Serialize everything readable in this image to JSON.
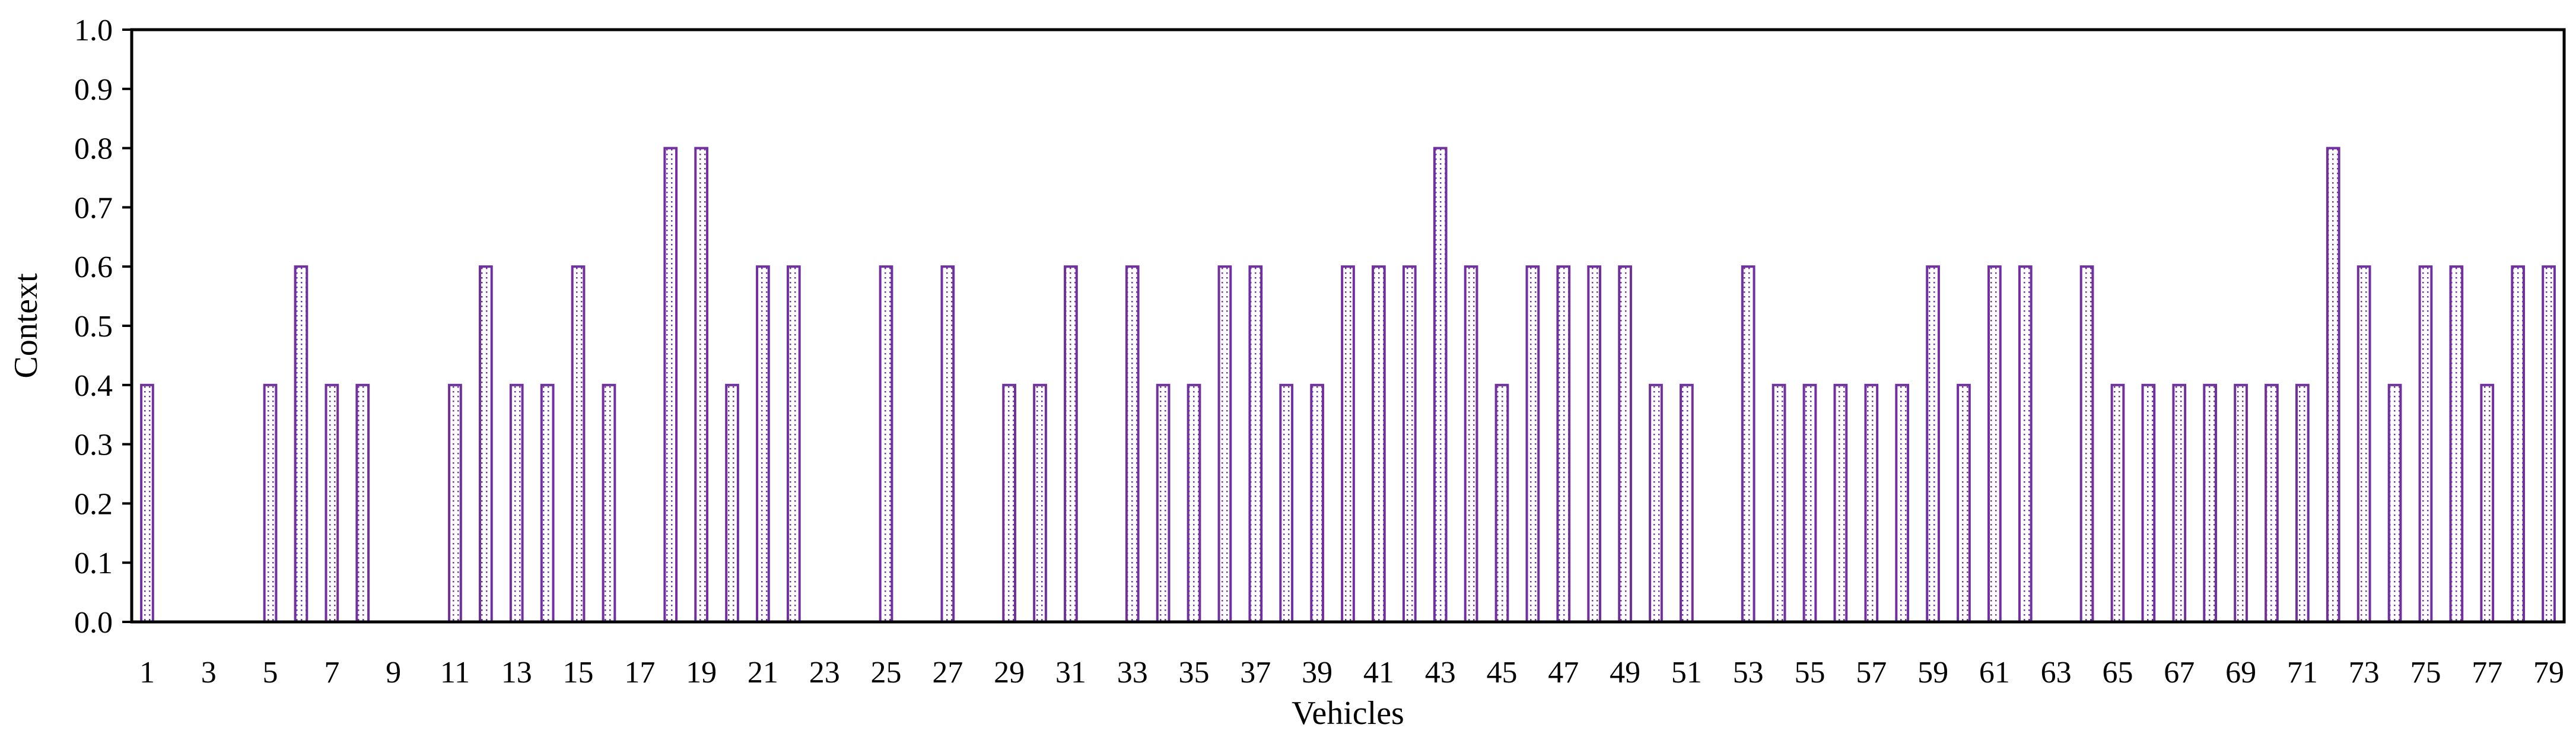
{
  "chart_data": {
    "type": "bar",
    "xlabel": "Vehicles",
    "ylabel": "Context",
    "ylim": [
      0,
      1.0
    ],
    "yticks": [
      "0.0",
      "0.1",
      "0.2",
      "0.3",
      "0.4",
      "0.5",
      "0.6",
      "0.7",
      "0.8",
      "0.9",
      "1.0"
    ],
    "xtick_labels": [
      "1",
      "3",
      "5",
      "7",
      "9",
      "11",
      "13",
      "15",
      "17",
      "19",
      "21",
      "23",
      "25",
      "27",
      "29",
      "31",
      "33",
      "35",
      "37",
      "39",
      "41",
      "43",
      "45",
      "47",
      "49",
      "51",
      "53",
      "55",
      "57",
      "59",
      "61",
      "63",
      "65",
      "67",
      "69",
      "71",
      "73",
      "75",
      "77",
      "79"
    ],
    "categories": [
      1,
      2,
      3,
      4,
      5,
      6,
      7,
      8,
      9,
      10,
      11,
      12,
      13,
      14,
      15,
      16,
      17,
      18,
      19,
      20,
      21,
      22,
      23,
      24,
      25,
      26,
      27,
      28,
      29,
      30,
      31,
      32,
      33,
      34,
      35,
      36,
      37,
      38,
      39,
      40,
      41,
      42,
      43,
      44,
      45,
      46,
      47,
      48,
      49,
      50,
      51,
      52,
      53,
      54,
      55,
      56,
      57,
      58,
      59,
      60,
      61,
      62,
      63,
      64,
      65,
      66,
      67,
      68,
      69,
      70,
      71,
      72,
      73,
      74,
      75,
      76,
      77,
      78,
      79
    ],
    "values": [
      0.4,
      0,
      0,
      0,
      0.4,
      0.6,
      0.4,
      0.4,
      0,
      0,
      0.4,
      0.6,
      0.4,
      0.4,
      0.6,
      0.4,
      0,
      0.8,
      0.8,
      0.4,
      0.6,
      0.6,
      0,
      0,
      0.6,
      0,
      0.6,
      0,
      0.4,
      0.4,
      0.6,
      0,
      0.6,
      0.4,
      0.4,
      0.6,
      0.6,
      0.4,
      0.4,
      0.6,
      0.6,
      0.6,
      0.8,
      0.6,
      0.4,
      0.6,
      0.6,
      0.6,
      0.6,
      0.4,
      0.4,
      0,
      0.6,
      0.4,
      0.4,
      0.4,
      0.4,
      0.4,
      0.6,
      0.4,
      0.6,
      0.6,
      0,
      0.6,
      0.4,
      0.4,
      0.4,
      0.4,
      0.4,
      0.4,
      0.4,
      0.8,
      0.6,
      0.4,
      0.6,
      0.6,
      0.4,
      0.6,
      0.6
    ],
    "bar_color": "#7030a0",
    "bar_pattern": "dotted white fill",
    "grid": false,
    "legend": "none"
  }
}
